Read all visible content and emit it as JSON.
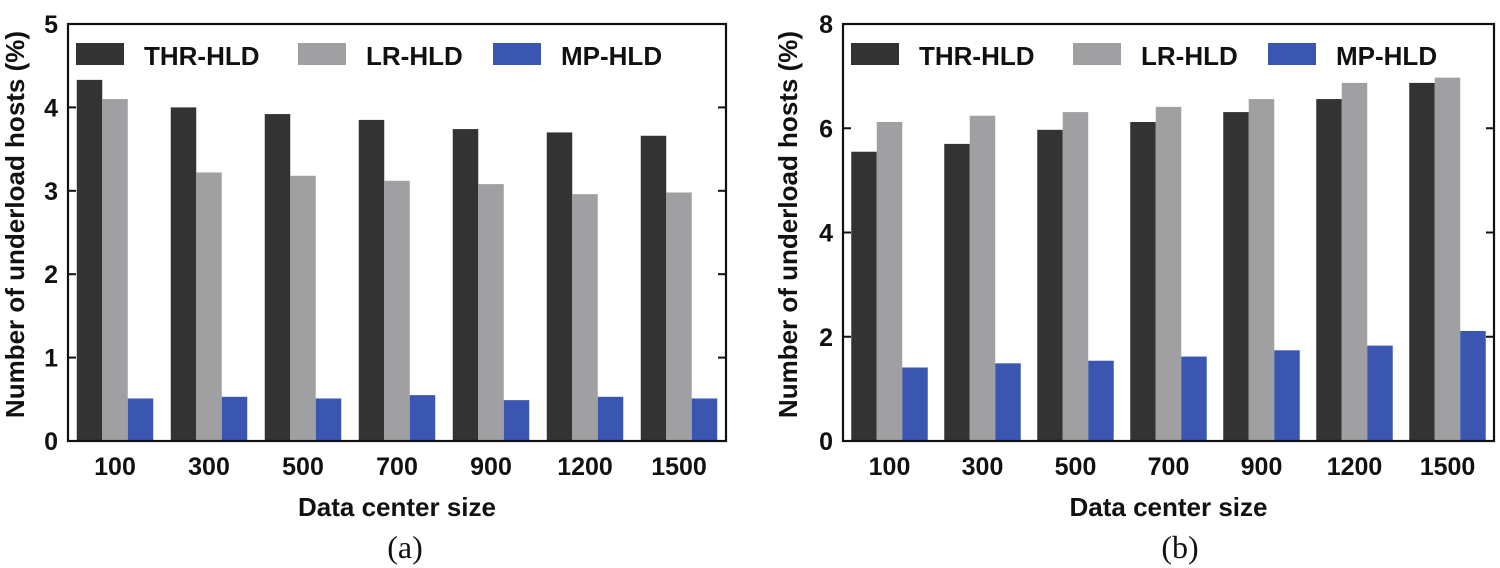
{
  "chart_data": [
    {
      "type": "bar",
      "caption": "(a)",
      "xlabel": "Data center size",
      "ylabel": "Number of underload hosts (%)",
      "ylim": [
        0,
        5
      ],
      "yticks": [
        "0",
        "1",
        "2",
        "3",
        "4",
        "5"
      ],
      "categories": [
        "100",
        "300",
        "500",
        "700",
        "900",
        "1200",
        "1500"
      ],
      "legend_position": "top",
      "series": [
        {
          "name": "THR-HLD",
          "color": "#333333",
          "values": [
            4.33,
            4.0,
            3.92,
            3.85,
            3.74,
            3.7,
            3.66
          ]
        },
        {
          "name": "LR-HLD",
          "color": "#a0a0a2",
          "values": [
            4.1,
            3.22,
            3.18,
            3.12,
            3.08,
            2.96,
            2.98
          ]
        },
        {
          "name": "MP-HLD",
          "color": "#3b56b0",
          "values": [
            0.51,
            0.53,
            0.51,
            0.55,
            0.49,
            0.53,
            0.51
          ]
        }
      ]
    },
    {
      "type": "bar",
      "caption": "(b)",
      "xlabel": "Data center size",
      "ylabel": "Number of underload hosts (%)",
      "ylim": [
        0,
        8
      ],
      "yticks": [
        "0",
        "2",
        "4",
        "6",
        "8"
      ],
      "categories": [
        "100",
        "300",
        "500",
        "700",
        "900",
        "1200",
        "1500"
      ],
      "legend_position": "top",
      "series": [
        {
          "name": "THR-HLD",
          "color": "#333333",
          "values": [
            5.55,
            5.7,
            5.97,
            6.12,
            6.31,
            6.56,
            6.87
          ]
        },
        {
          "name": "LR-HLD",
          "color": "#a0a0a2",
          "values": [
            6.12,
            6.24,
            6.31,
            6.41,
            6.56,
            6.87,
            6.97
          ]
        },
        {
          "name": "MP-HLD",
          "color": "#3b56b0",
          "values": [
            1.41,
            1.49,
            1.54,
            1.62,
            1.74,
            1.83,
            2.11
          ]
        }
      ]
    }
  ]
}
